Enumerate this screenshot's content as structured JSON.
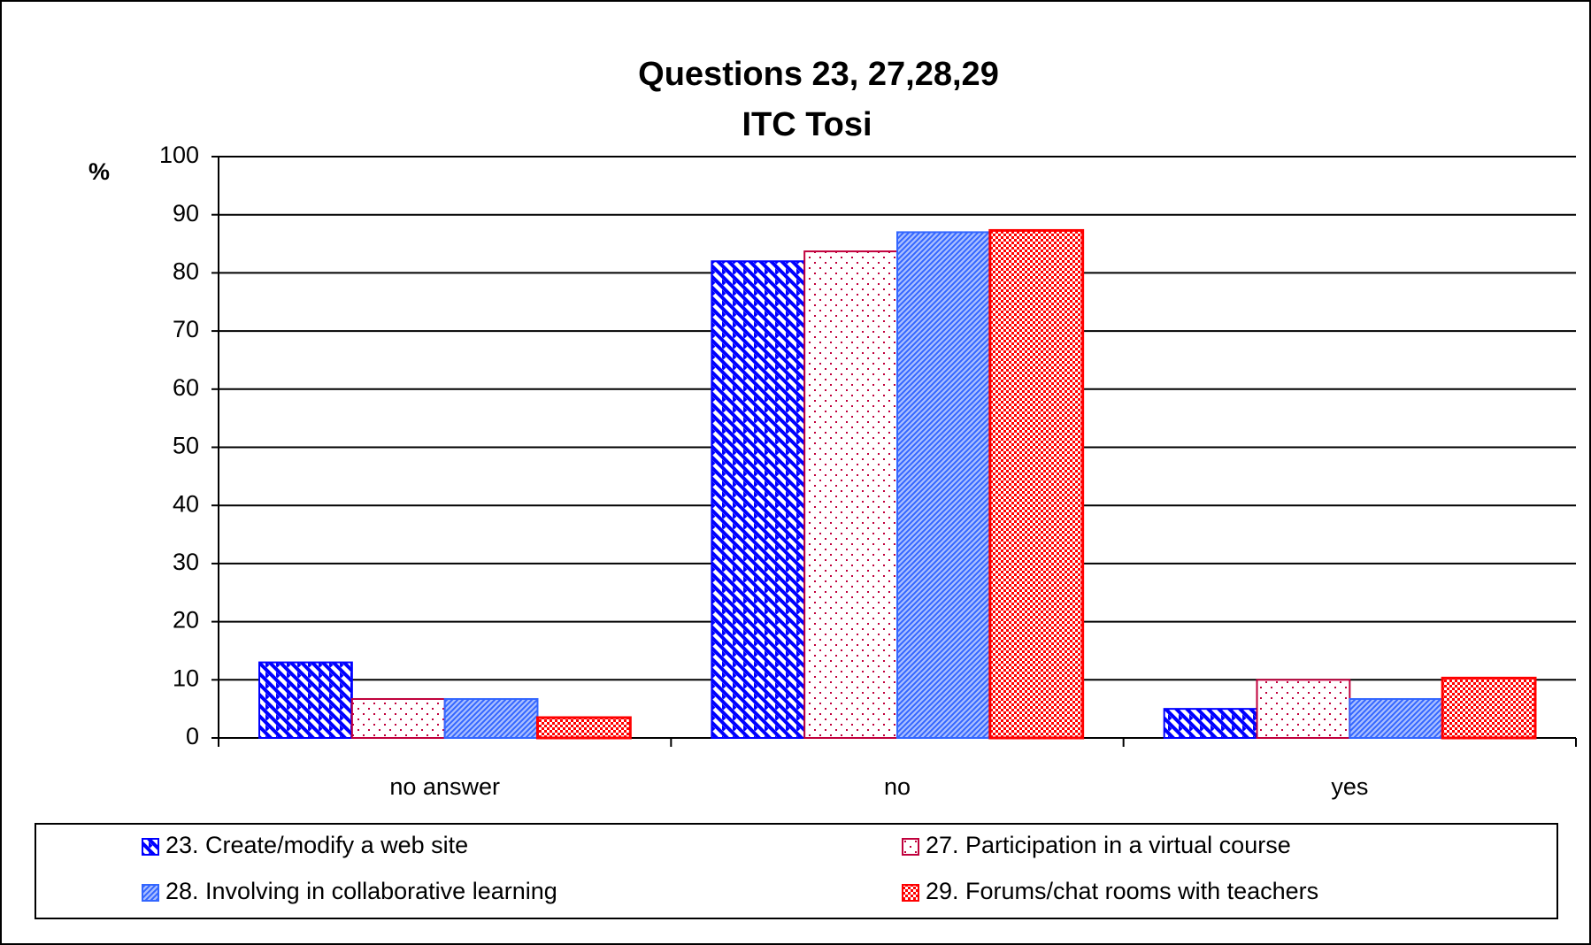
{
  "chart_data": {
    "type": "bar",
    "title": [
      "Questions 23, 27,28,29",
      "ITC Tosi"
    ],
    "y_label": "%",
    "categories": [
      "no answer",
      "no",
      "yes"
    ],
    "series": [
      {
        "name": "23. Create/modify a web site",
        "color": "#0000ff",
        "values": [
          13,
          82,
          5
        ]
      },
      {
        "name": "27. Participation in a virtual course",
        "color": "#c0003c",
        "values": [
          6.7,
          83.7,
          10
        ]
      },
      {
        "name": "28. Involving in collaborative learning",
        "color": "#3366ff",
        "values": [
          6.7,
          87,
          6.7
        ]
      },
      {
        "name": "29. Forums/chat rooms with teachers",
        "color": "#ff0000",
        "values": [
          3.5,
          87.3,
          10.3
        ]
      }
    ],
    "ylim": [
      0,
      100
    ],
    "yticks": [
      0,
      10,
      20,
      30,
      40,
      50,
      60,
      70,
      80,
      90,
      100
    ],
    "grid": true,
    "legend": "bottom"
  }
}
